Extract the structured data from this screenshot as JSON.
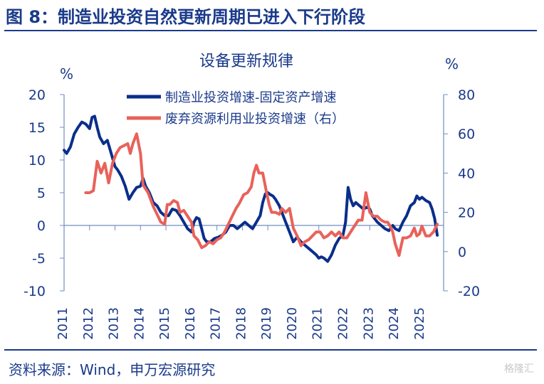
{
  "figure_title": "图 8：制造业投资自然更新周期已进入下行阶段",
  "source": "资料来源：Wind，申万宏源研究",
  "watermark": "格隆汇",
  "chart_data": {
    "type": "line",
    "title": "设备更新规律",
    "y_left_unit": "%",
    "y_right_unit": "%",
    "y_left_lim": [
      -10,
      20
    ],
    "y_right_lim": [
      -20,
      80
    ],
    "y_left_ticks": [
      "20",
      "15",
      "10",
      "5",
      "0",
      "-5",
      "-10"
    ],
    "y_right_ticks": [
      "80",
      "60",
      "40",
      "20",
      "0",
      "-20"
    ],
    "x_lim": [
      2011.0,
      2025.9
    ],
    "x_ticks": [
      "2011",
      "2012",
      "2013",
      "2014",
      "2015",
      "2016",
      "2017",
      "2018",
      "2019",
      "2020",
      "2021",
      "2022",
      "2023",
      "2024",
      "2025"
    ],
    "grid": false,
    "legend_position": "top-center",
    "colors": {
      "series1": "#0a2e8a",
      "series2": "#e8625a",
      "axis": "#6f8fbf",
      "title": "#1a3a8a"
    },
    "series": [
      {
        "name": "制造业投资增速-固定资产增速",
        "axis": "left",
        "x": [
          2011.0,
          2011.1,
          2011.25,
          2011.4,
          2011.55,
          2011.7,
          2011.85,
          2012.0,
          2012.1,
          2012.2,
          2012.3,
          2012.4,
          2012.55,
          2012.7,
          2012.85,
          2013.0,
          2013.1,
          2013.25,
          2013.4,
          2013.55,
          2013.7,
          2013.85,
          2014.0,
          2014.1,
          2014.2,
          2014.35,
          2014.5,
          2014.65,
          2014.8,
          2014.95,
          2015.1,
          2015.25,
          2015.4,
          2015.55,
          2015.7,
          2015.85,
          2016.0,
          2016.1,
          2016.2,
          2016.3,
          2016.4,
          2016.5,
          2016.6,
          2016.75,
          2016.9,
          2017.05,
          2017.2,
          2017.35,
          2017.5,
          2017.65,
          2017.8,
          2017.95,
          2018.1,
          2018.25,
          2018.4,
          2018.55,
          2018.7,
          2018.8,
          2018.9,
          2019.0,
          2019.1,
          2019.2,
          2019.3,
          2019.45,
          2019.6,
          2019.75,
          2019.9,
          2020.0,
          2020.15,
          2020.3,
          2020.45,
          2020.6,
          2020.75,
          2020.9,
          2021.0,
          2021.1,
          2021.2,
          2021.35,
          2021.5,
          2021.65,
          2021.8,
          2021.95,
          2022.05,
          2022.15,
          2022.25,
          2022.35,
          2022.45,
          2022.6,
          2022.75,
          2022.9,
          2023.0,
          2023.1,
          2023.2,
          2023.3,
          2023.45,
          2023.6,
          2023.75,
          2023.9,
          2024.0,
          2024.15,
          2024.3,
          2024.45,
          2024.6,
          2024.75,
          2024.85,
          2024.95,
          2025.05,
          2025.2,
          2025.35,
          2025.45,
          2025.55,
          2025.65
        ],
        "values": [
          11.5,
          11.0,
          12.0,
          14.0,
          15.0,
          15.8,
          15.5,
          14.8,
          16.5,
          16.7,
          15.0,
          13.5,
          12.5,
          13.0,
          11.0,
          9.0,
          8.5,
          7.5,
          6.0,
          4.0,
          5.0,
          5.8,
          6.0,
          7.2,
          6.0,
          5.0,
          3.5,
          3.0,
          2.0,
          1.5,
          1.5,
          2.5,
          2.3,
          1.5,
          0.5,
          -0.5,
          -1.0,
          0.5,
          1.2,
          1.0,
          -0.5,
          -2.0,
          -2.5,
          -2.5,
          -2.0,
          -1.8,
          -1.5,
          -1.0,
          0.0,
          0.0,
          -0.5,
          0.0,
          0.5,
          0.0,
          -0.5,
          0.5,
          1.5,
          3.5,
          4.8,
          5.0,
          4.7,
          4.5,
          4.0,
          3.0,
          1.5,
          0.0,
          -1.5,
          -2.5,
          -1.8,
          -2.5,
          -3.0,
          -3.5,
          -4.0,
          -4.5,
          -5.0,
          -4.8,
          -5.0,
          -5.5,
          -4.5,
          -3.0,
          -2.0,
          -1.5,
          0.5,
          5.8,
          4.0,
          3.0,
          3.5,
          3.0,
          2.5,
          2.8,
          2.5,
          1.5,
          1.0,
          0.5,
          0.0,
          -0.5,
          -0.8,
          0.0,
          -0.5,
          -0.8,
          0.5,
          1.5,
          3.0,
          3.5,
          4.5,
          4.0,
          4.3,
          3.8,
          3.5,
          2.5,
          1.0,
          -1.5
        ]
      },
      {
        "name": "废弃资源利用业投资增速（右）",
        "axis": "right",
        "x": [
          2011.85,
          2012.0,
          2012.15,
          2012.3,
          2012.45,
          2012.6,
          2012.75,
          2012.9,
          2013.05,
          2013.2,
          2013.35,
          2013.5,
          2013.6,
          2013.7,
          2013.85,
          2014.0,
          2014.1,
          2014.3,
          2014.5,
          2014.65,
          2014.8,
          2014.95,
          2015.05,
          2015.15,
          2015.3,
          2015.45,
          2015.55,
          2015.7,
          2015.85,
          2016.0,
          2016.1,
          2016.25,
          2016.4,
          2016.55,
          2016.7,
          2016.85,
          2017.0,
          2017.15,
          2017.3,
          2017.45,
          2017.6,
          2017.75,
          2017.9,
          2018.05,
          2018.2,
          2018.35,
          2018.45,
          2018.55,
          2018.65,
          2018.8,
          2018.95,
          2019.05,
          2019.15,
          2019.3,
          2019.45,
          2019.55,
          2019.7,
          2019.85,
          2020.0,
          2020.15,
          2020.3,
          2020.45,
          2020.6,
          2020.75,
          2020.9,
          2021.05,
          2021.2,
          2021.35,
          2021.5,
          2021.65,
          2021.8,
          2021.95,
          2022.1,
          2022.25,
          2022.4,
          2022.55,
          2022.7,
          2022.85,
          2023.0,
          2023.15,
          2023.3,
          2023.45,
          2023.6,
          2023.7,
          2023.8,
          2023.9,
          2024.0,
          2024.15,
          2024.3,
          2024.45,
          2024.6,
          2024.75,
          2024.85,
          2024.95,
          2025.05,
          2025.2,
          2025.35,
          2025.5,
          2025.65
        ],
        "values": [
          30,
          30,
          31,
          46,
          40,
          45,
          35,
          45,
          50,
          53,
          54,
          55,
          50,
          55,
          60,
          50,
          34,
          30,
          23,
          19,
          15,
          14,
          24,
          24,
          26,
          25,
          20,
          21,
          18,
          15,
          8,
          6,
          2,
          3,
          5,
          4,
          6,
          7,
          10,
          14,
          18,
          22,
          25,
          29,
          30,
          33,
          40,
          44,
          40,
          40,
          30,
          24,
          20,
          20,
          19,
          22,
          20,
          22,
          12,
          8,
          3,
          5,
          6,
          8,
          10,
          10,
          7,
          8,
          10,
          8,
          10,
          7,
          7,
          10,
          13,
          16,
          16,
          30,
          20,
          18,
          18,
          16,
          15,
          15,
          13,
          10,
          4,
          -2,
          7,
          7,
          8,
          12,
          8,
          9,
          13,
          8,
          8,
          10,
          14
        ]
      }
    ]
  }
}
